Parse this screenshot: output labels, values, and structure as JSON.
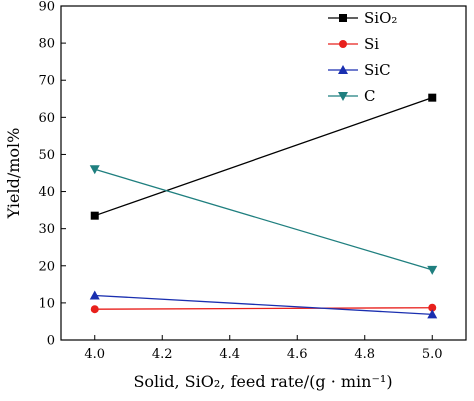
{
  "chart_data": {
    "type": "line",
    "title": "",
    "xlabel": "Solid, SiO₂, feed rate/(g · min⁻¹)",
    "ylabel": "Yield/mol%",
    "xlim": [
      3.9,
      5.1
    ],
    "ylim": [
      0,
      90
    ],
    "xticks": [
      "4.0",
      "4.2",
      "4.4",
      "4.6",
      "4.8",
      "5.0"
    ],
    "yticks": [
      "0",
      "10",
      "20",
      "30",
      "40",
      "50",
      "60",
      "70",
      "80",
      "90"
    ],
    "grid": false,
    "legend_position": "top-right",
    "x": [
      4.0,
      5.0
    ],
    "series": [
      {
        "name": "SiO₂",
        "values": [
          33.5,
          65.3
        ],
        "color": "#000000",
        "marker": "square"
      },
      {
        "name": "Si",
        "values": [
          8.3,
          8.7
        ],
        "color": "#e8201c",
        "marker": "circle"
      },
      {
        "name": "SiC",
        "values": [
          12.0,
          6.9
        ],
        "color": "#1a2fb0",
        "marker": "triangle-up"
      },
      {
        "name": "C",
        "values": [
          46.0,
          18.9
        ],
        "color": "#1f7f7f",
        "marker": "triangle-down"
      }
    ]
  }
}
